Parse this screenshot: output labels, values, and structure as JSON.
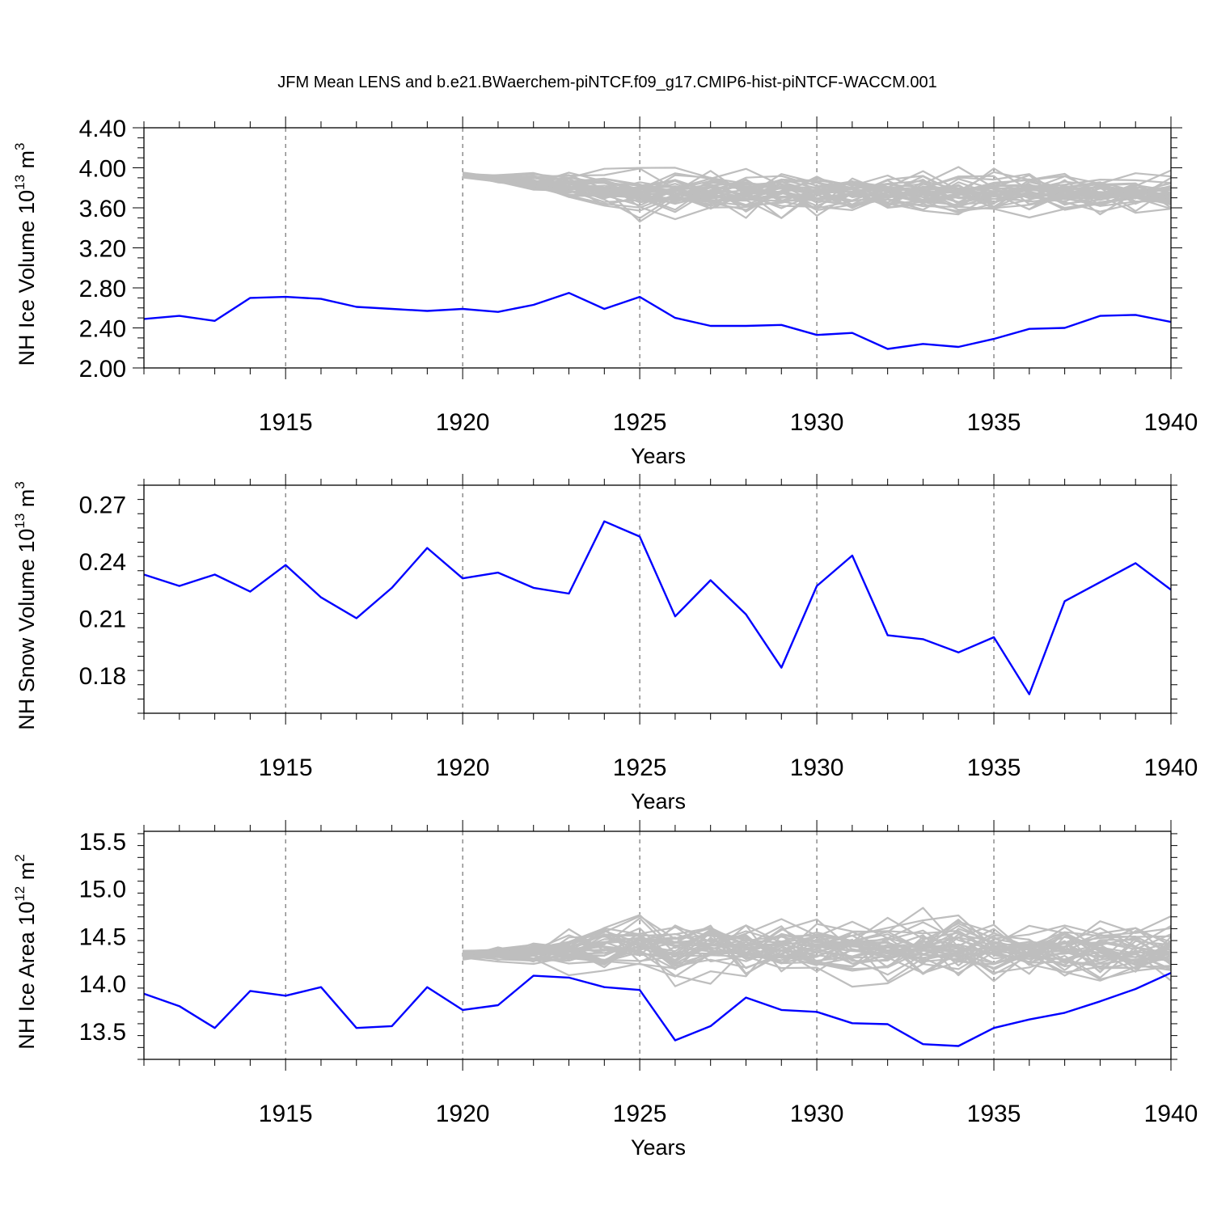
{
  "figure": {
    "title": "JFM Mean LENS and b.e21.BWaerchem-piNTCF.f09_g17.CMIP6-hist-piNTCF-WACCM.001",
    "colors": {
      "model": "#0000ff",
      "ensemble": "#bebebe",
      "axis": "#000000",
      "grid": "#555555"
    }
  },
  "chart_data": [
    {
      "type": "line",
      "name": "ice-volume",
      "xlabel": "Years",
      "ylabel_text": "NH Ice Volume 10",
      "ylabel_exp": "13",
      "ylabel_unit": " m",
      "ylabel_unit_exp": "3",
      "xlim": [
        1911,
        1940
      ],
      "ylim": [
        2.0,
        4.4
      ],
      "xticks": [
        1915,
        1920,
        1925,
        1930,
        1935,
        1940
      ],
      "yticks": [
        2.0,
        2.4,
        2.8,
        3.2,
        3.6,
        4.0,
        4.4
      ],
      "ytick_labels": [
        "2.00",
        "2.40",
        "2.80",
        "3.20",
        "3.60",
        "4.00",
        "4.40"
      ],
      "grid": "vertical dashed at major x ticks",
      "series": [
        {
          "name": "b.e21.BWaerchem-piNTCF.f09_g17.CMIP6-hist-piNTCF-WACCM.001",
          "color": "#0000ff",
          "x": [
            1911,
            1912,
            1913,
            1914,
            1915,
            1916,
            1917,
            1918,
            1919,
            1920,
            1921,
            1922,
            1923,
            1924,
            1925,
            1926,
            1927,
            1928,
            1929,
            1930,
            1931,
            1932,
            1933,
            1934,
            1935,
            1936,
            1937,
            1938,
            1939,
            1940
          ],
          "values": [
            2.49,
            2.52,
            2.47,
            2.7,
            2.71,
            2.69,
            2.61,
            2.59,
            2.57,
            2.59,
            2.56,
            2.63,
            2.75,
            2.59,
            2.71,
            2.5,
            2.42,
            2.42,
            2.43,
            2.33,
            2.35,
            2.19,
            2.24,
            2.21,
            2.29,
            2.39,
            2.4,
            2.52,
            2.53,
            2.46
          ]
        }
      ],
      "ensemble": {
        "name": "LENS",
        "color": "#bebebe",
        "x_start": 1920,
        "x_end": 1940,
        "members": 40,
        "start_value": 3.93,
        "center": 3.74,
        "spread": 0.33,
        "seed": 7
      }
    },
    {
      "type": "line",
      "name": "snow-volume",
      "xlabel": "Years",
      "ylabel_text": "NH Snow Volume 10",
      "ylabel_exp": "13",
      "ylabel_unit": " m",
      "ylabel_unit_exp": "3",
      "xlim": [
        1911,
        1940
      ],
      "ylim": [
        0.16,
        0.28
      ],
      "xticks": [
        1915,
        1920,
        1925,
        1930,
        1935,
        1940
      ],
      "yticks": [
        0.18,
        0.21,
        0.24,
        0.27
      ],
      "ytick_labels": [
        "0.18",
        "0.21",
        "0.24",
        "0.27"
      ],
      "grid": "vertical dashed at major x ticks",
      "series": [
        {
          "name": "b.e21.BWaerchem-piNTCF.f09_g17.CMIP6-hist-piNTCF-WACCM.001",
          "color": "#0000ff",
          "x": [
            1911,
            1912,
            1913,
            1914,
            1915,
            1916,
            1917,
            1918,
            1919,
            1920,
            1921,
            1922,
            1923,
            1924,
            1925,
            1926,
            1927,
            1928,
            1929,
            1930,
            1931,
            1932,
            1933,
            1934,
            1935,
            1936,
            1937,
            1938,
            1939,
            1940
          ],
          "values": [
            0.233,
            0.227,
            0.233,
            0.224,
            0.238,
            0.221,
            0.21,
            0.226,
            0.247,
            0.231,
            0.234,
            0.226,
            0.223,
            0.261,
            0.253,
            0.211,
            0.23,
            0.212,
            0.184,
            0.227,
            0.243,
            0.201,
            0.199,
            0.192,
            0.2,
            0.17,
            0.219,
            0.229,
            0.239,
            0.225
          ]
        }
      ]
    },
    {
      "type": "line",
      "name": "ice-area",
      "xlabel": "Years",
      "ylabel_text": "NH Ice Area 10",
      "ylabel_exp": "12",
      "ylabel_unit": " m",
      "ylabel_unit_exp": "2",
      "xlim": [
        1911,
        1940
      ],
      "ylim": [
        13.2,
        15.6
      ],
      "xticks": [
        1915,
        1920,
        1925,
        1930,
        1935,
        1940
      ],
      "yticks": [
        13.5,
        14.0,
        14.5,
        15.0,
        15.5
      ],
      "ytick_labels": [
        "13.5",
        "14.0",
        "14.5",
        "15.0",
        "15.5"
      ],
      "grid": "vertical dashed at major x ticks",
      "series": [
        {
          "name": "b.e21.BWaerchem-piNTCF.f09_g17.CMIP6-hist-piNTCF-WACCM.001",
          "color": "#0000ff",
          "x": [
            1911,
            1912,
            1913,
            1914,
            1915,
            1916,
            1917,
            1918,
            1919,
            1920,
            1921,
            1922,
            1923,
            1924,
            1925,
            1926,
            1927,
            1928,
            1929,
            1930,
            1931,
            1932,
            1933,
            1934,
            1935,
            1936,
            1937,
            1938,
            1939,
            1940
          ],
          "values": [
            13.89,
            13.76,
            13.53,
            13.92,
            13.87,
            13.96,
            13.53,
            13.55,
            13.96,
            13.72,
            13.77,
            14.08,
            14.06,
            13.96,
            13.93,
            13.4,
            13.55,
            13.85,
            13.72,
            13.7,
            13.58,
            13.57,
            13.36,
            13.34,
            13.53,
            13.62,
            13.69,
            13.81,
            13.94,
            14.11
          ]
        }
      ],
      "ensemble": {
        "name": "LENS",
        "color": "#bebebe",
        "x_start": 1920,
        "x_end": 1940,
        "members": 40,
        "start_value": 14.3,
        "center": 14.38,
        "spread": 0.5,
        "seed": 23
      }
    }
  ]
}
